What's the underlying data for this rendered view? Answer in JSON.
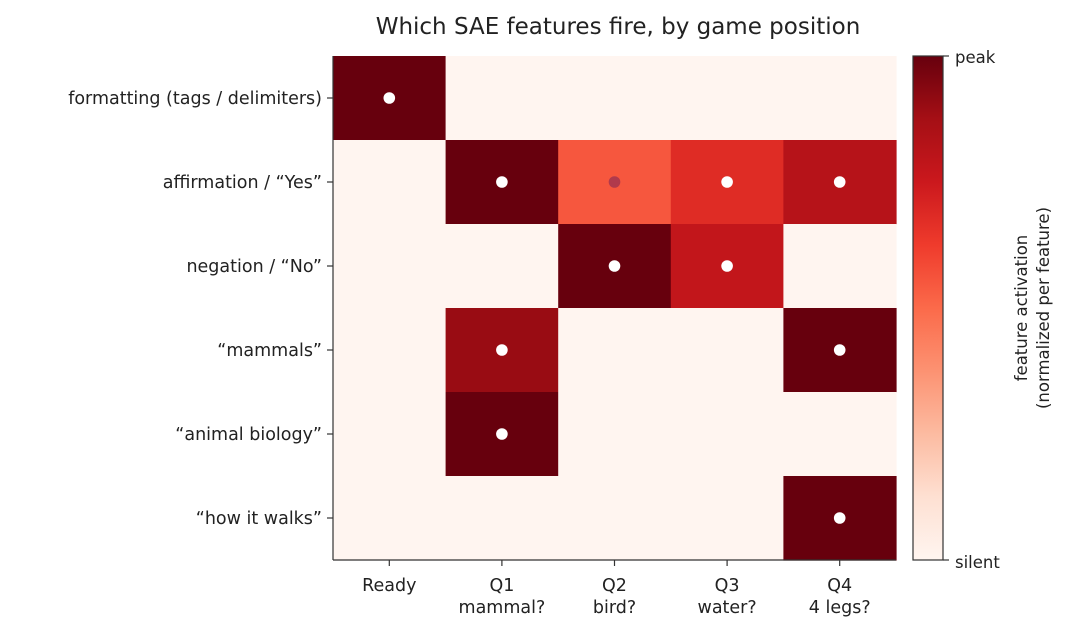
{
  "chart_data": {
    "type": "heatmap",
    "title": "Which SAE features fire, by game position",
    "rows": [
      "formatting (tags / delimiters)",
      "affirmation  /  “Yes”",
      "negation  /  “No”",
      "“mammals”",
      "“animal biology”",
      "“how it walks”"
    ],
    "columns": [
      {
        "line1": "Ready",
        "line2": ""
      },
      {
        "line1": "Q1",
        "line2": "mammal?"
      },
      {
        "line1": "Q2",
        "line2": "bird?"
      },
      {
        "line1": "Q3",
        "line2": "water?"
      },
      {
        "line1": "Q4",
        "line2": "4 legs?"
      }
    ],
    "values": [
      [
        1.0,
        0.0,
        0.0,
        0.0,
        0.0
      ],
      [
        0.0,
        1.0,
        0.55,
        0.68,
        0.82
      ],
      [
        0.0,
        0.0,
        1.0,
        0.78,
        0.0
      ],
      [
        0.0,
        0.9,
        0.0,
        0.0,
        1.0
      ],
      [
        0.0,
        1.0,
        0.0,
        0.0,
        0.0
      ],
      [
        0.0,
        0.0,
        0.0,
        0.0,
        1.0
      ]
    ],
    "markers": [
      [
        true,
        false,
        false,
        false,
        false
      ],
      [
        false,
        true,
        true,
        true,
        true
      ],
      [
        false,
        false,
        true,
        true,
        false
      ],
      [
        false,
        true,
        false,
        false,
        true
      ],
      [
        false,
        true,
        false,
        false,
        false
      ],
      [
        false,
        false,
        false,
        false,
        true
      ]
    ],
    "colorscale": "Reds",
    "colorbar": {
      "label_line1": "feature activation",
      "label_line2": "(normalized per feature)",
      "tick_max": "peak",
      "tick_min": "silent"
    }
  }
}
